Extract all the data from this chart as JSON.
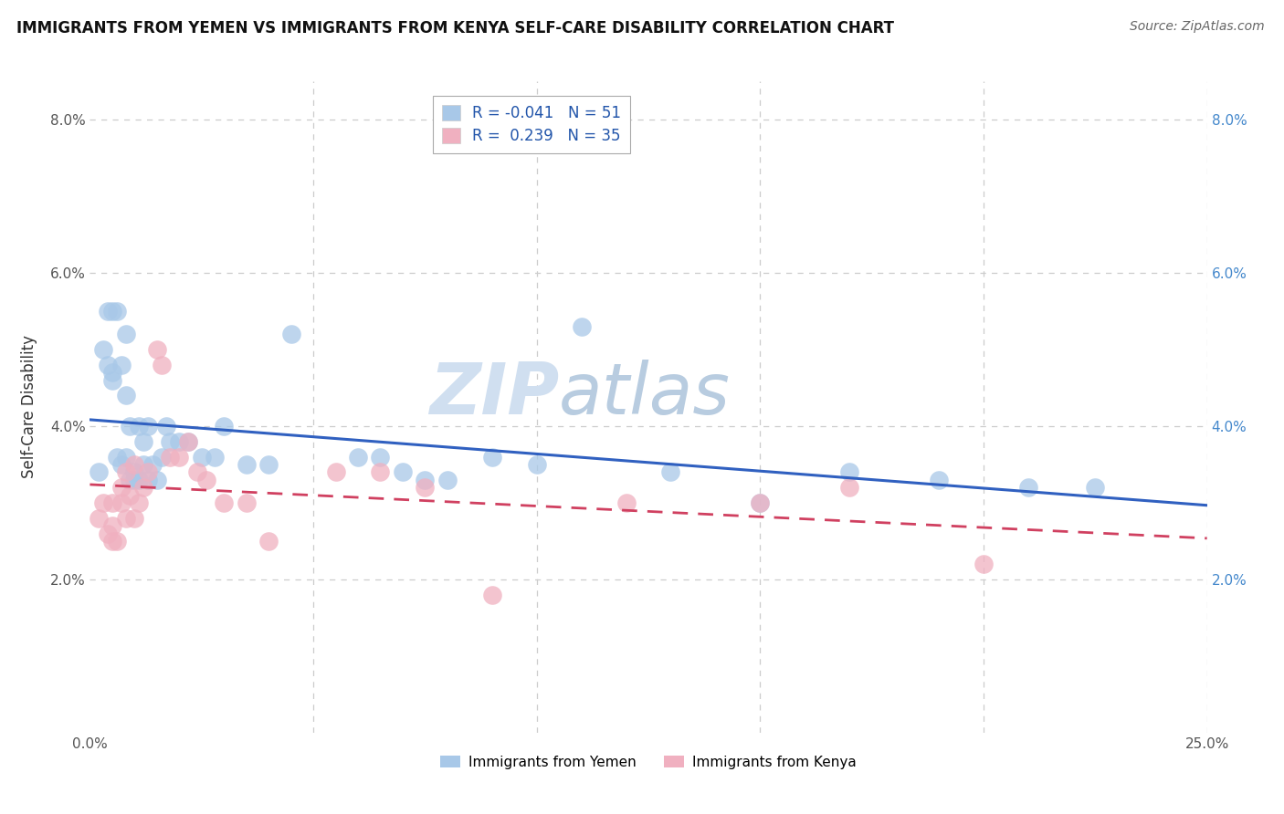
{
  "title": "IMMIGRANTS FROM YEMEN VS IMMIGRANTS FROM KENYA SELF-CARE DISABILITY CORRELATION CHART",
  "source": "Source: ZipAtlas.com",
  "ylabel": "Self-Care Disability",
  "x_min": 0.0,
  "x_max": 0.25,
  "y_min": 0.0,
  "y_max": 0.085,
  "yticks": [
    0.0,
    0.02,
    0.04,
    0.06,
    0.08
  ],
  "ytick_labels_left": [
    "",
    "2.0%",
    "4.0%",
    "6.0%",
    "8.0%"
  ],
  "ytick_labels_right": [
    "",
    "2.0%",
    "4.0%",
    "6.0%",
    "8.0%"
  ],
  "xticks": [
    0.0,
    0.05,
    0.1,
    0.15,
    0.2,
    0.25
  ],
  "xtick_labels": [
    "0.0%",
    "",
    "",
    "",
    "",
    "25.0%"
  ],
  "color_yemen": "#a8c8e8",
  "color_kenya": "#f0b0c0",
  "line_color_yemen": "#3060c0",
  "line_color_kenya": "#d04060",
  "watermark_color": "#d0dff0",
  "legend_r_yemen": "-0.041",
  "legend_n_yemen": "51",
  "legend_r_kenya": "0.239",
  "legend_n_kenya": "35",
  "yemen_x": [
    0.002,
    0.003,
    0.004,
    0.004,
    0.005,
    0.005,
    0.005,
    0.006,
    0.006,
    0.007,
    0.007,
    0.008,
    0.008,
    0.008,
    0.009,
    0.009,
    0.01,
    0.01,
    0.011,
    0.011,
    0.012,
    0.012,
    0.013,
    0.013,
    0.014,
    0.015,
    0.016,
    0.017,
    0.018,
    0.02,
    0.022,
    0.025,
    0.028,
    0.03,
    0.035,
    0.04,
    0.045,
    0.06,
    0.065,
    0.07,
    0.075,
    0.08,
    0.09,
    0.1,
    0.11,
    0.13,
    0.15,
    0.17,
    0.19,
    0.21,
    0.225
  ],
  "yemen_y": [
    0.034,
    0.05,
    0.048,
    0.055,
    0.047,
    0.046,
    0.055,
    0.036,
    0.055,
    0.035,
    0.048,
    0.036,
    0.044,
    0.052,
    0.033,
    0.04,
    0.033,
    0.034,
    0.033,
    0.04,
    0.035,
    0.038,
    0.033,
    0.04,
    0.035,
    0.033,
    0.036,
    0.04,
    0.038,
    0.038,
    0.038,
    0.036,
    0.036,
    0.04,
    0.035,
    0.035,
    0.052,
    0.036,
    0.036,
    0.034,
    0.033,
    0.033,
    0.036,
    0.035,
    0.053,
    0.034,
    0.03,
    0.034,
    0.033,
    0.032,
    0.032
  ],
  "kenya_x": [
    0.002,
    0.003,
    0.004,
    0.005,
    0.005,
    0.005,
    0.006,
    0.007,
    0.007,
    0.008,
    0.008,
    0.009,
    0.01,
    0.01,
    0.011,
    0.012,
    0.013,
    0.015,
    0.016,
    0.018,
    0.02,
    0.022,
    0.024,
    0.026,
    0.03,
    0.035,
    0.04,
    0.055,
    0.065,
    0.075,
    0.09,
    0.12,
    0.15,
    0.17,
    0.2
  ],
  "kenya_y": [
    0.028,
    0.03,
    0.026,
    0.025,
    0.027,
    0.03,
    0.025,
    0.03,
    0.032,
    0.028,
    0.034,
    0.031,
    0.028,
    0.035,
    0.03,
    0.032,
    0.034,
    0.05,
    0.048,
    0.036,
    0.036,
    0.038,
    0.034,
    0.033,
    0.03,
    0.03,
    0.025,
    0.034,
    0.034,
    0.032,
    0.018,
    0.03,
    0.03,
    0.032,
    0.022
  ]
}
